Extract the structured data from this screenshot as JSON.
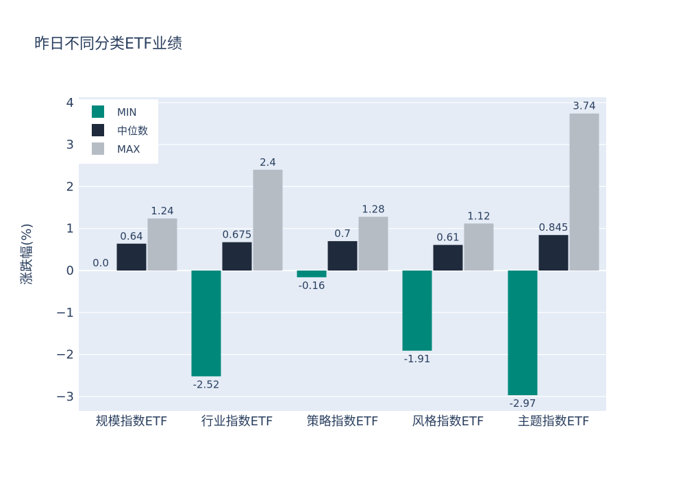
{
  "chart_data": {
    "type": "bar",
    "title": "昨日不同分类ETF业绩",
    "xlabel": "",
    "ylabel": "涨跌幅(%)",
    "ylim": [
      -3.3,
      4.2
    ],
    "yticks": [
      4,
      3,
      2,
      1,
      0,
      -1,
      -2,
      -3
    ],
    "ytick_labels": [
      "4",
      "3",
      "2",
      "1",
      "0",
      "−1",
      "−2",
      "−3"
    ],
    "categories": [
      "规模指数ETF",
      "行业指数ETF",
      "策略指数ETF",
      "风格指数ETF",
      "主题指数ETF"
    ],
    "series": [
      {
        "name": "MIN",
        "color": "#00897b",
        "values": [
          0.0,
          -2.52,
          -0.16,
          -1.91,
          -2.97
        ],
        "labels": [
          "0.0",
          "-2.52",
          "-0.16",
          "-1.91",
          "-2.97"
        ]
      },
      {
        "name": "中位数",
        "color": "#1f2a3c",
        "values": [
          0.64,
          0.675,
          0.7,
          0.61,
          0.845
        ],
        "labels": [
          "0.64",
          "0.675",
          "0.7",
          "0.61",
          "0.845"
        ]
      },
      {
        "name": "MAX",
        "color": "#b5bcc4",
        "values": [
          1.24,
          2.4,
          1.28,
          1.12,
          3.74
        ],
        "labels": [
          "1.24",
          "2.4",
          "1.28",
          "1.12",
          "3.74"
        ]
      }
    ],
    "grid": true,
    "legend_position": "top-left",
    "plot_background": "#e5ecf6"
  }
}
